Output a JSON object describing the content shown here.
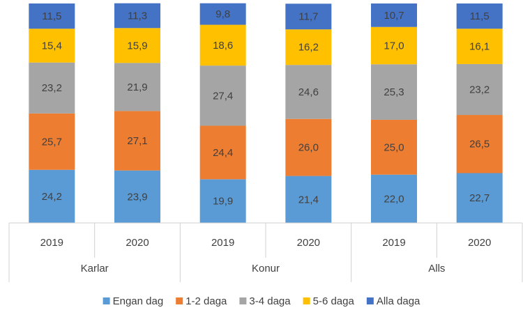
{
  "chart_data": {
    "type": "stacked-bar",
    "categories": [
      "2019",
      "2020",
      "2019",
      "2020",
      "2019",
      "2020"
    ],
    "groups": [
      "Karlar",
      "Konur",
      "Alls"
    ],
    "ylim": [
      0,
      100
    ],
    "legend": "bottom",
    "series": [
      {
        "name": "Engan dag",
        "color": "#5b9bd5",
        "values": [
          24.2,
          23.9,
          19.9,
          21.4,
          22.0,
          22.7
        ],
        "value_labels": [
          "24,2",
          "23,9",
          "19,9",
          "21,4",
          "22,0",
          "22,7"
        ]
      },
      {
        "name": "1-2 daga",
        "color": "#ed7d31",
        "values": [
          25.7,
          27.1,
          24.4,
          26.0,
          25.0,
          26.5
        ],
        "value_labels": [
          "25,7",
          "27,1",
          "24,4",
          "26,0",
          "25,0",
          "26,5"
        ]
      },
      {
        "name": "3-4 daga",
        "color": "#a5a5a5",
        "values": [
          23.2,
          21.9,
          27.4,
          24.6,
          25.3,
          23.2
        ],
        "value_labels": [
          "23,2",
          "21,9",
          "27,4",
          "24,6",
          "25,3",
          "23,2"
        ]
      },
      {
        "name": "5-6 daga",
        "color": "#ffc000",
        "values": [
          15.4,
          15.9,
          18.6,
          16.2,
          17.0,
          16.1
        ],
        "value_labels": [
          "15,4",
          "15,9",
          "18,6",
          "16,2",
          "17,0",
          "16,1"
        ]
      },
      {
        "name": "Alla daga",
        "color": "#4472c4",
        "values": [
          11.5,
          11.3,
          9.8,
          11.7,
          10.7,
          11.5
        ],
        "value_labels": [
          "11,5",
          "11,3",
          "9,8",
          "11,7",
          "10,7",
          "11,5"
        ]
      }
    ]
  }
}
